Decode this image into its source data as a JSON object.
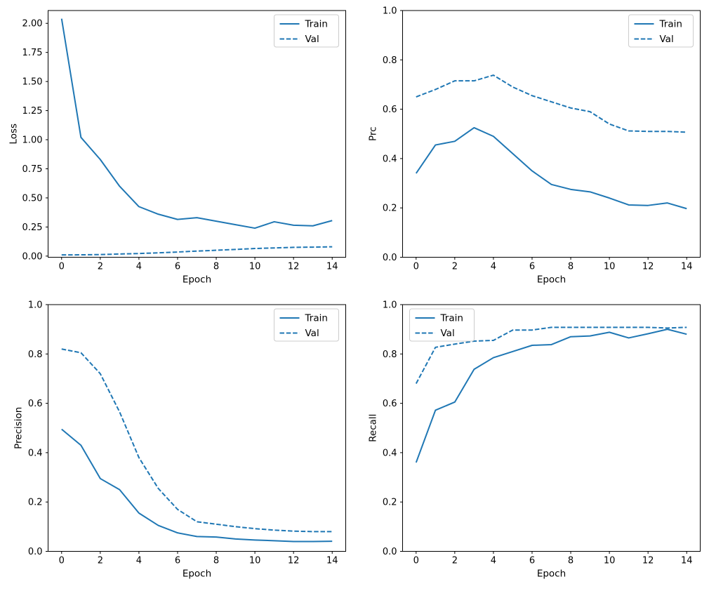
{
  "figure": {
    "background": "#ffffff",
    "line_color": "#1f77b4",
    "axis_color": "#000000",
    "legend_border_color": "#cccccc",
    "legend_background": "#ffffff"
  },
  "chart_data": [
    {
      "id": "loss",
      "type": "line",
      "title": "",
      "xlabel": "Epoch",
      "ylabel": "Loss",
      "x": [
        0,
        1,
        2,
        3,
        4,
        5,
        6,
        7,
        8,
        9,
        10,
        11,
        12,
        13,
        14
      ],
      "series": [
        {
          "name": "Train",
          "line_style": "solid",
          "values": [
            2.04,
            1.02,
            0.83,
            0.6,
            0.425,
            0.36,
            0.315,
            0.33,
            0.3,
            0.27,
            0.24,
            0.295,
            0.265,
            0.26,
            0.305
          ]
        },
        {
          "name": "Val",
          "line_style": "dashed",
          "values": [
            0.01,
            0.011,
            0.013,
            0.018,
            0.022,
            0.028,
            0.035,
            0.043,
            0.05,
            0.057,
            0.065,
            0.07,
            0.075,
            0.077,
            0.08
          ]
        }
      ],
      "xlim": [
        -0.7,
        14.7
      ],
      "ylim": [
        -0.01,
        2.11
      ],
      "xticks": [
        0,
        2,
        4,
        6,
        8,
        10,
        12,
        14
      ],
      "xtick_labels": [
        "0",
        "2",
        "4",
        "6",
        "8",
        "10",
        "12",
        "14"
      ],
      "yticks": [
        0,
        0.25,
        0.5,
        0.75,
        1.0,
        1.25,
        1.5,
        1.75,
        2.0
      ],
      "ytick_labels": [
        "0.00",
        "0.25",
        "0.50",
        "0.75",
        "1.00",
        "1.25",
        "1.50",
        "1.75",
        "2.00"
      ],
      "legend": {
        "position": "upper-right",
        "entries": [
          "Train",
          "Val"
        ]
      },
      "grid": false
    },
    {
      "id": "prc",
      "type": "line",
      "title": "",
      "xlabel": "Epoch",
      "ylabel": "Prc",
      "x": [
        0,
        1,
        2,
        3,
        4,
        5,
        6,
        7,
        8,
        9,
        10,
        11,
        12,
        13,
        14
      ],
      "series": [
        {
          "name": "Train",
          "line_style": "solid",
          "values": [
            0.34,
            0.455,
            0.47,
            0.525,
            0.49,
            0.42,
            0.35,
            0.295,
            0.275,
            0.265,
            0.24,
            0.212,
            0.21,
            0.22,
            0.197
          ]
        },
        {
          "name": "Val",
          "line_style": "dashed",
          "values": [
            0.65,
            0.68,
            0.715,
            0.715,
            0.738,
            0.69,
            0.655,
            0.63,
            0.605,
            0.59,
            0.54,
            0.512,
            0.51,
            0.51,
            0.507
          ]
        }
      ],
      "xlim": [
        -0.7,
        14.7
      ],
      "ylim": [
        0,
        1
      ],
      "xticks": [
        0,
        2,
        4,
        6,
        8,
        10,
        12,
        14
      ],
      "xtick_labels": [
        "0",
        "2",
        "4",
        "6",
        "8",
        "10",
        "12",
        "14"
      ],
      "yticks": [
        0,
        0.2,
        0.4,
        0.6,
        0.8,
        1.0
      ],
      "ytick_labels": [
        "0.0",
        "0.2",
        "0.4",
        "0.6",
        "0.8",
        "1.0"
      ],
      "legend": {
        "position": "upper-right",
        "entries": [
          "Train",
          "Val"
        ]
      },
      "grid": false
    },
    {
      "id": "precision",
      "type": "line",
      "title": "",
      "xlabel": "Epoch",
      "ylabel": "Precision",
      "x": [
        0,
        1,
        2,
        3,
        4,
        5,
        6,
        7,
        8,
        9,
        10,
        11,
        12,
        13,
        14
      ],
      "series": [
        {
          "name": "Train",
          "line_style": "solid",
          "values": [
            0.495,
            0.43,
            0.295,
            0.25,
            0.155,
            0.105,
            0.075,
            0.06,
            0.058,
            0.05,
            0.046,
            0.043,
            0.04,
            0.04,
            0.041
          ]
        },
        {
          "name": "Val",
          "line_style": "dashed",
          "values": [
            0.82,
            0.805,
            0.72,
            0.565,
            0.38,
            0.255,
            0.17,
            0.12,
            0.11,
            0.1,
            0.092,
            0.086,
            0.082,
            0.08,
            0.08
          ]
        }
      ],
      "xlim": [
        -0.7,
        14.7
      ],
      "ylim": [
        0,
        1
      ],
      "xticks": [
        0,
        2,
        4,
        6,
        8,
        10,
        12,
        14
      ],
      "xtick_labels": [
        "0",
        "2",
        "4",
        "6",
        "8",
        "10",
        "12",
        "14"
      ],
      "yticks": [
        0,
        0.2,
        0.4,
        0.6,
        0.8,
        1.0
      ],
      "ytick_labels": [
        "0.0",
        "0.2",
        "0.4",
        "0.6",
        "0.8",
        "1.0"
      ],
      "legend": {
        "position": "upper-right",
        "entries": [
          "Train",
          "Val"
        ]
      },
      "grid": false
    },
    {
      "id": "recall",
      "type": "line",
      "title": "",
      "xlabel": "Epoch",
      "ylabel": "Recall",
      "x": [
        0,
        1,
        2,
        3,
        4,
        5,
        6,
        7,
        8,
        9,
        10,
        11,
        12,
        13,
        14
      ],
      "series": [
        {
          "name": "Train",
          "line_style": "solid",
          "values": [
            0.36,
            0.572,
            0.605,
            0.738,
            0.785,
            0.81,
            0.835,
            0.838,
            0.87,
            0.873,
            0.888,
            0.865,
            0.882,
            0.9,
            0.88
          ]
        },
        {
          "name": "Val",
          "line_style": "dashed",
          "values": [
            0.68,
            0.827,
            0.84,
            0.852,
            0.855,
            0.897,
            0.897,
            0.908,
            0.908,
            0.908,
            0.908,
            0.908,
            0.908,
            0.905,
            0.908
          ]
        }
      ],
      "xlim": [
        -0.7,
        14.7
      ],
      "ylim": [
        0,
        1
      ],
      "xticks": [
        0,
        2,
        4,
        6,
        8,
        10,
        12,
        14
      ],
      "xtick_labels": [
        "0",
        "2",
        "4",
        "6",
        "8",
        "10",
        "12",
        "14"
      ],
      "yticks": [
        0,
        0.2,
        0.4,
        0.6,
        0.8,
        1.0
      ],
      "ytick_labels": [
        "0.0",
        "0.2",
        "0.4",
        "0.6",
        "0.8",
        "1.0"
      ],
      "legend": {
        "position": "upper-left",
        "entries": [
          "Train",
          "Val"
        ]
      },
      "grid": false
    }
  ]
}
